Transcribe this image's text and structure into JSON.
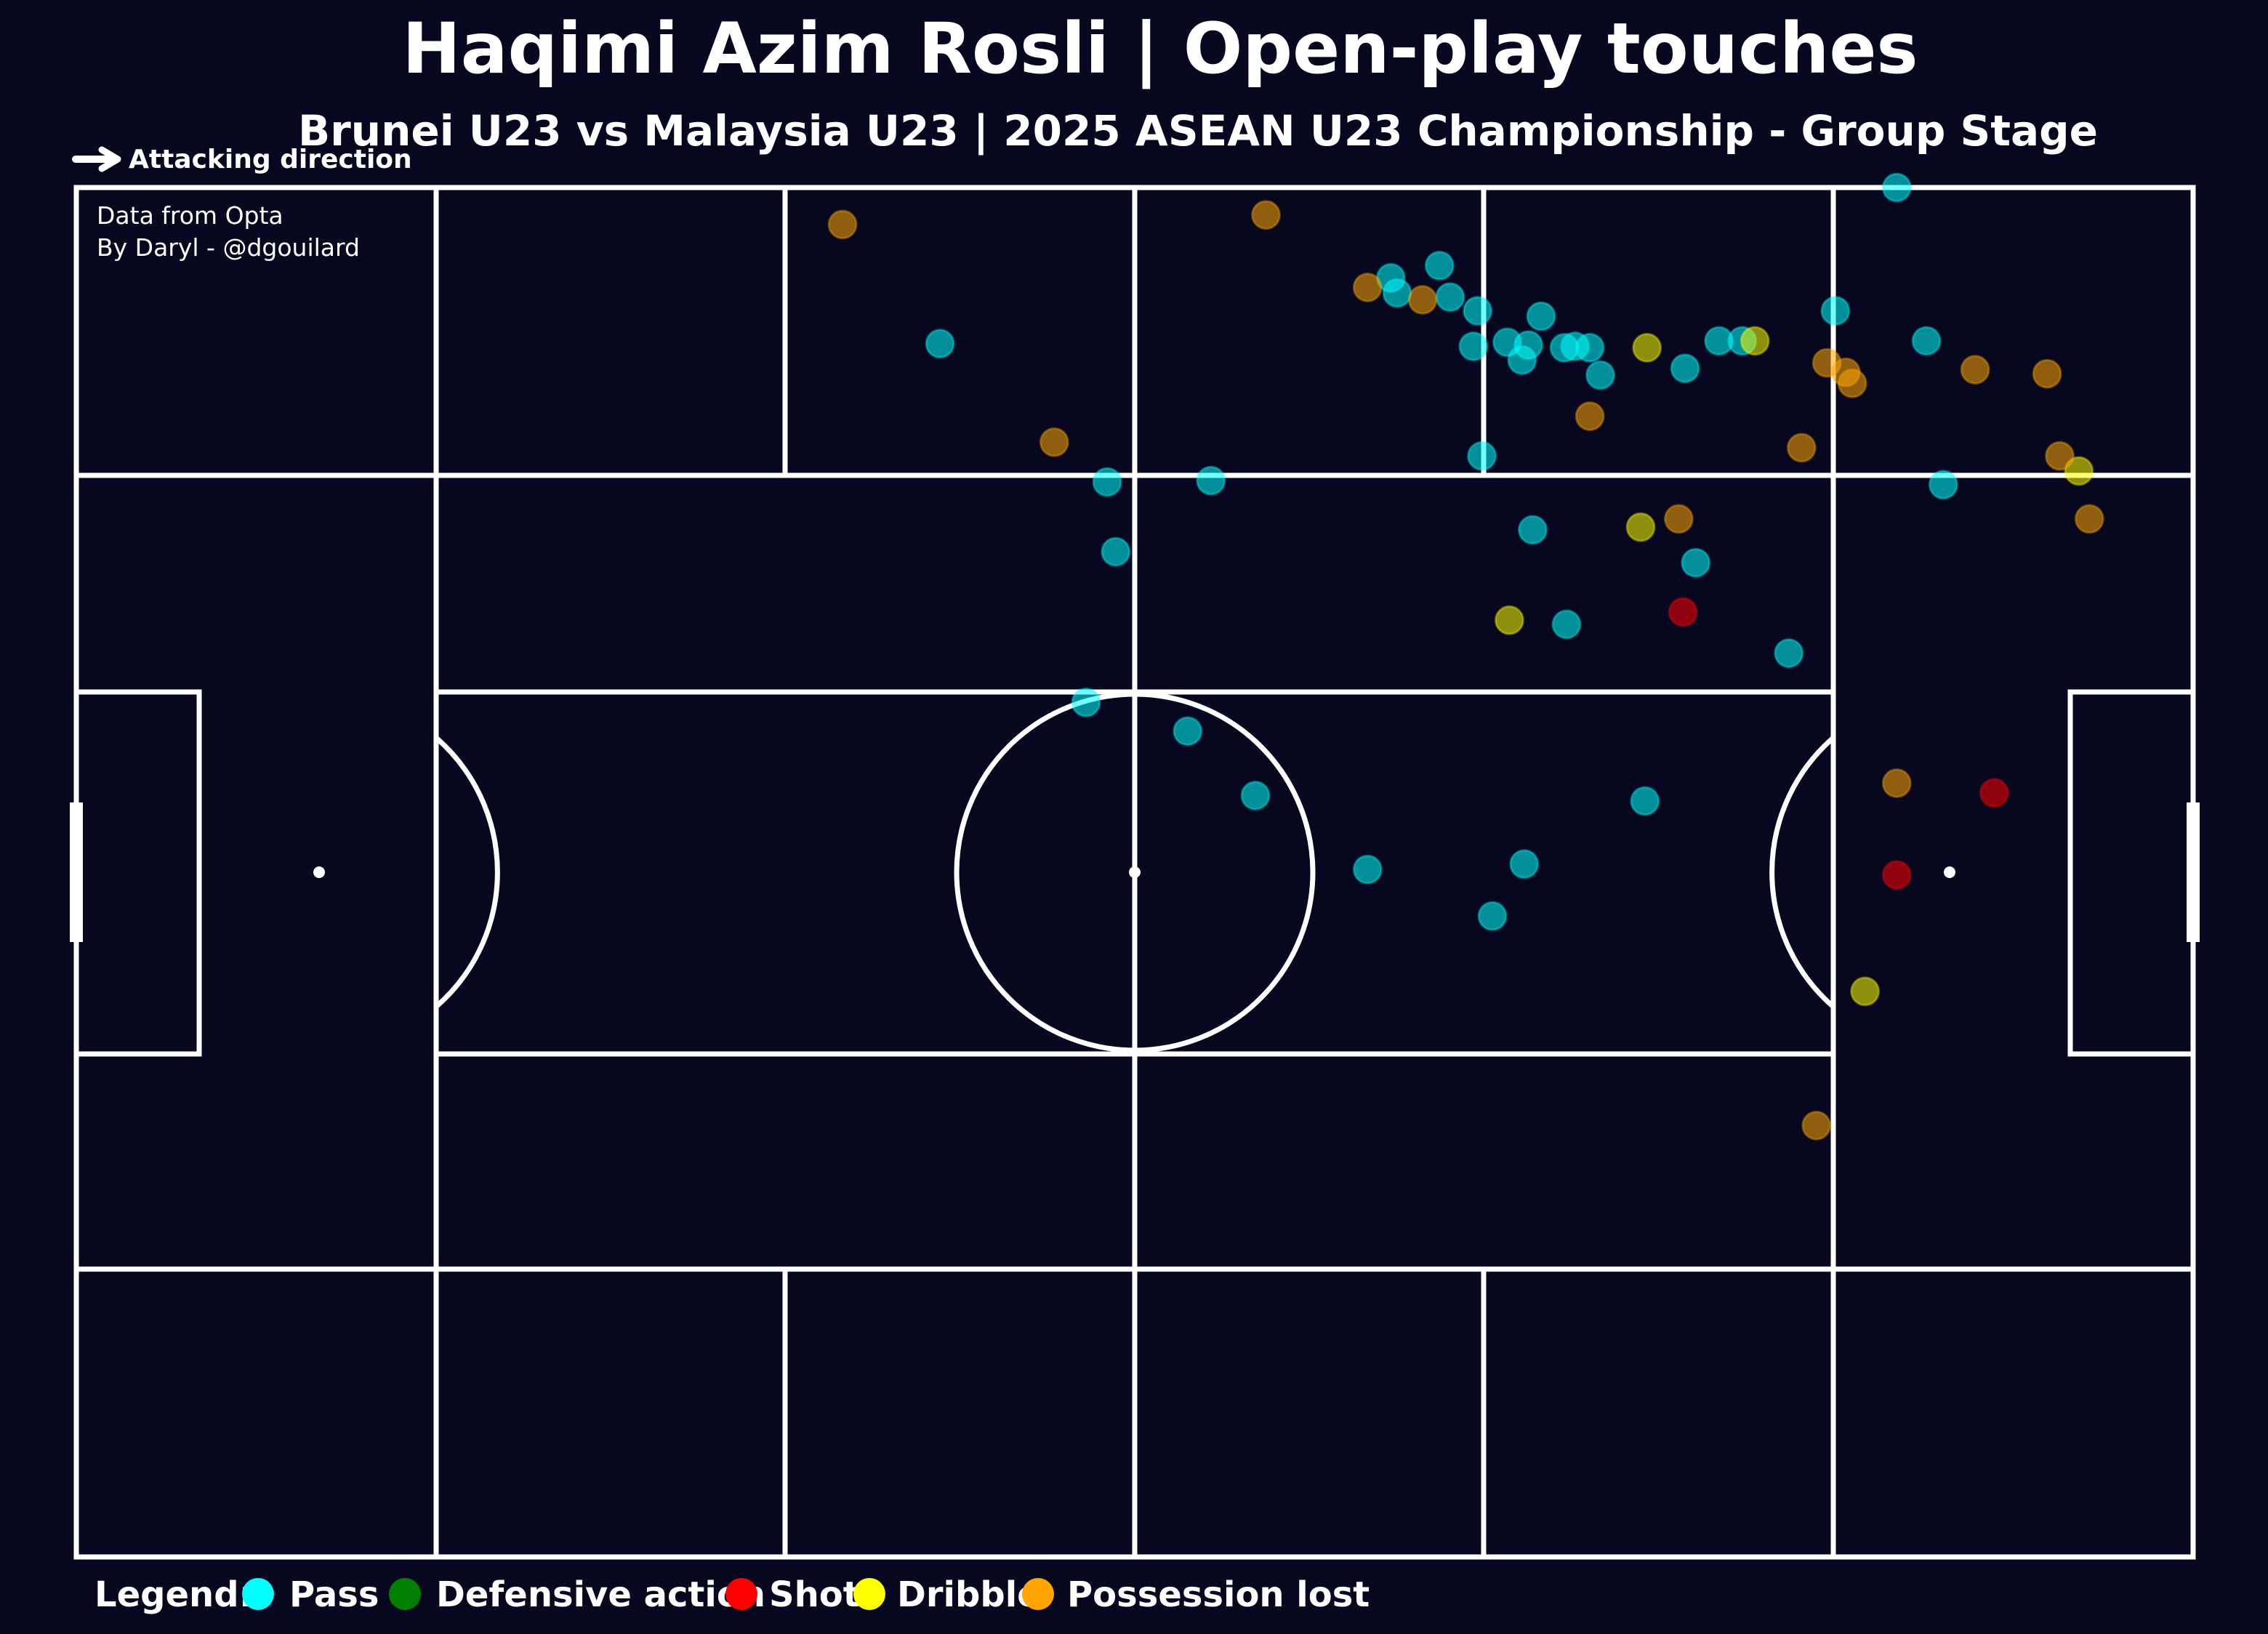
{
  "header": {
    "title": "Haqimi Azim Rosli | Open-play touches",
    "subtitle": "Brunei U23 vs Malaysia U23 | 2025 ASEAN U23 Championship - Group Stage",
    "attacking_direction": "Attacking direction"
  },
  "credits": {
    "line1": "Data from Opta",
    "line2": "By Daryl - @dgouilard"
  },
  "legend": {
    "label": "Legend:",
    "items": [
      {
        "key": "pass",
        "label": "Pass",
        "color": "#00ffff"
      },
      {
        "key": "defensive",
        "label": "Defensive action",
        "color": "#008000"
      },
      {
        "key": "shot",
        "label": "Shot",
        "color": "#ff0000"
      },
      {
        "key": "dribble",
        "label": "Dribble",
        "color": "#ffff00"
      },
      {
        "key": "lost",
        "label": "Possession lost",
        "color": "#ffa500"
      }
    ]
  },
  "chart_data": {
    "type": "scatter",
    "pitch": "opta 100x100, attacking left to right",
    "xlim": [
      0,
      100
    ],
    "ylim": [
      0,
      100
    ],
    "series": [
      {
        "name": "Pass",
        "color": "#00ffff",
        "points": [
          [
            86.0,
            100.0
          ],
          [
            40.8,
            88.6
          ],
          [
            62.1,
            93.4
          ],
          [
            62.4,
            92.3
          ],
          [
            64.4,
            94.3
          ],
          [
            64.9,
            92.0
          ],
          [
            66.2,
            91.0
          ],
          [
            66.0,
            88.4
          ],
          [
            67.6,
            88.7
          ],
          [
            68.6,
            88.5
          ],
          [
            68.3,
            87.4
          ],
          [
            69.2,
            90.6
          ],
          [
            70.3,
            88.3
          ],
          [
            70.8,
            88.4
          ],
          [
            72.0,
            86.3
          ],
          [
            71.5,
            88.3
          ],
          [
            76.0,
            86.8
          ],
          [
            77.6,
            88.8
          ],
          [
            78.7,
            88.8
          ],
          [
            83.1,
            91.0
          ],
          [
            87.4,
            88.8
          ],
          [
            88.2,
            78.3
          ],
          [
            48.7,
            78.5
          ],
          [
            53.6,
            78.6
          ],
          [
            66.4,
            80.4
          ],
          [
            49.1,
            73.4
          ],
          [
            68.8,
            75.0
          ],
          [
            70.4,
            68.1
          ],
          [
            76.5,
            72.6
          ],
          [
            80.9,
            66.0
          ],
          [
            47.7,
            62.4
          ],
          [
            52.5,
            60.3
          ],
          [
            55.7,
            55.6
          ],
          [
            74.1,
            55.2
          ],
          [
            61.0,
            50.2
          ],
          [
            68.4,
            50.6
          ],
          [
            66.9,
            46.8
          ]
        ]
      },
      {
        "name": "Shot",
        "color": "#ff0000",
        "points": [
          [
            75.9,
            69.0
          ],
          [
            90.6,
            55.8
          ],
          [
            86.0,
            49.8
          ]
        ]
      },
      {
        "name": "Dribble",
        "color": "#ffff00",
        "points": [
          [
            74.2,
            88.3
          ],
          [
            79.3,
            88.8
          ],
          [
            94.6,
            79.3
          ],
          [
            73.9,
            75.2
          ],
          [
            67.7,
            68.4
          ],
          [
            84.5,
            41.3
          ]
        ]
      },
      {
        "name": "Possession lost",
        "color": "#ffa500",
        "points": [
          [
            36.2,
            97.3
          ],
          [
            56.2,
            98.0
          ],
          [
            61.0,
            92.7
          ],
          [
            63.6,
            91.8
          ],
          [
            46.2,
            81.4
          ],
          [
            71.5,
            83.3
          ],
          [
            81.5,
            81.0
          ],
          [
            82.7,
            87.2
          ],
          [
            83.9,
            85.7
          ],
          [
            83.6,
            86.5
          ],
          [
            89.7,
            86.7
          ],
          [
            93.1,
            86.4
          ],
          [
            93.7,
            80.4
          ],
          [
            95.1,
            75.8
          ],
          [
            75.7,
            75.8
          ],
          [
            86.0,
            56.5
          ],
          [
            82.2,
            31.5
          ]
        ]
      }
    ]
  }
}
